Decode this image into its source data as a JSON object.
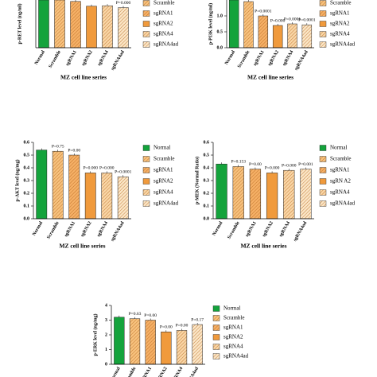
{
  "chart_data": [
    {
      "type": "bar",
      "y_label": "p-RET level (ng/ml)",
      "x_label": "MZ cell line series",
      "categories": [
        "Normal",
        "Scramble",
        "sgRNA1",
        "sgRNA2",
        "sgRNA4",
        "sgRNA4ad"
      ],
      "values": [
        1.0,
        1.0,
        0.97,
        0.87,
        0.88,
        0.84
      ],
      "ylim": [
        0,
        1
      ],
      "annotations": [
        null,
        null,
        null,
        null,
        null,
        "P=0.000"
      ],
      "legend": [
        "Normal",
        "Scramble",
        "sgRNA1",
        "sgRNA2",
        "sgRNA4",
        "sgRNA4ad"
      ],
      "colors": [
        "#14a33c",
        "#f7c27e",
        "#f5b066",
        "#f09a3c",
        "#f9d6a6",
        "#fbe6c6"
      ],
      "hatch": [
        false,
        true,
        true,
        false,
        true,
        true
      ]
    },
    {
      "type": "bar",
      "y_label": "p-PI3K level (ng/ml)",
      "x_label": "MZ cell line series",
      "categories": [
        "Normal",
        "Scramble",
        "sgRNA1",
        "sgRNA2",
        "sgRNA4",
        "sgRNA4ad"
      ],
      "values": [
        1.5,
        1.45,
        1.0,
        0.7,
        0.75,
        0.72
      ],
      "ylim": [
        0,
        1.5
      ],
      "yticks": [
        {
          "value": 0,
          "label": "0.0"
        },
        {
          "value": 0.5,
          "label": "0.5"
        },
        {
          "value": 1,
          "label": "1.0"
        }
      ],
      "annotations": [
        null,
        null,
        "P=0.0001",
        "P=0.000",
        "P=0.0001",
        "P=0.0001"
      ],
      "legend": [
        "Normal",
        "Scramble",
        "sgRNA1",
        "sgRNA2",
        "sgRNA4",
        "sgRNA4ad"
      ],
      "colors": [
        "#14a33c",
        "#f7c27e",
        "#f5b066",
        "#f09a3c",
        "#f9d6a6",
        "#fbe6c6"
      ],
      "hatch": [
        false,
        true,
        true,
        false,
        true,
        true
      ]
    },
    {
      "type": "bar",
      "y_label": "p-AKT level (ng/mg)",
      "x_label": "MZ cell line series",
      "categories": [
        "Normal",
        "Scramble",
        "sgRNA1",
        "sgRNA2",
        "sgRNA4",
        "sgRNA4ad"
      ],
      "values": [
        0.54,
        0.53,
        0.5,
        0.36,
        0.36,
        0.33
      ],
      "ylim": [
        0,
        0.6
      ],
      "yticks": [
        {
          "value": 0,
          "label": "0.0"
        },
        0.1,
        0.2,
        0.3,
        0.4,
        0.5,
        0.6
      ],
      "annotations": [
        null,
        "P=0.75",
        "P=0.00",
        "P=0.000",
        "P=0.000",
        "P=0.0001"
      ],
      "legend": [
        "Normal",
        "Scramble",
        "sgRNA1",
        "sgRNA2",
        "sgRNA4",
        "sgRNA4ad"
      ],
      "colors": [
        "#14a33c",
        "#f7c27e",
        "#f5b066",
        "#f09a3c",
        "#f9d6a6",
        "#fbe6c6"
      ],
      "hatch": [
        false,
        true,
        true,
        false,
        true,
        true
      ]
    },
    {
      "type": "bar",
      "y_label": "p-MEK (Normal Ratio)",
      "x_label": "MZ cell line series",
      "categories": [
        "Normal",
        "Scramble",
        "sgRNA1",
        "sgRNA2",
        "sgRNA4",
        "sgRNA4ad"
      ],
      "values": [
        0.43,
        0.41,
        0.39,
        0.36,
        0.38,
        0.39
      ],
      "ylim": [
        0,
        0.6
      ],
      "yticks": [
        {
          "value": 0,
          "label": "0.0"
        },
        0.1,
        0.2,
        0.3,
        0.4,
        0.5,
        0.6
      ],
      "annotations": [
        null,
        "P=0.153",
        "P=0.00",
        "P=0.000",
        "P=0.000",
        "P=0.001"
      ],
      "legend": [
        "Normal",
        "Scramble",
        "sgRNA1",
        "sgRN A2",
        "sgRNA4",
        "sgRNA4ad"
      ],
      "colors": [
        "#14a33c",
        "#f7c27e",
        "#f5b066",
        "#f09a3c",
        "#f9d6a6",
        "#fbe6c6"
      ],
      "hatch": [
        false,
        true,
        true,
        false,
        true,
        true
      ]
    },
    {
      "type": "bar",
      "y_label": "p-ERK level (ng/mg)",
      "categories": [
        "Normal",
        "Scramble",
        "sgRNA1",
        "sgRNA2",
        "sgRNA4",
        "sgRNA4ad"
      ],
      "values": [
        3.2,
        3.1,
        3.0,
        2.2,
        2.3,
        2.7
      ],
      "ylim": [
        0,
        4
      ],
      "yticks": [
        0,
        1,
        2,
        3,
        4
      ],
      "annotations": [
        null,
        "P=0.63",
        "P=0.00",
        "P=0.00",
        "P=0.00",
        "P=0.17"
      ],
      "legend": [
        "Normal",
        "Scramble",
        "sgRNA1",
        "sgRNA2",
        "sgRNA4",
        "sgRNA4ad"
      ],
      "colors": [
        "#14a33c",
        "#f7c27e",
        "#f5b066",
        "#f09a3c",
        "#f9d6a6",
        "#fbe6c6"
      ],
      "hatch": [
        false,
        true,
        true,
        false,
        true,
        true
      ]
    }
  ]
}
